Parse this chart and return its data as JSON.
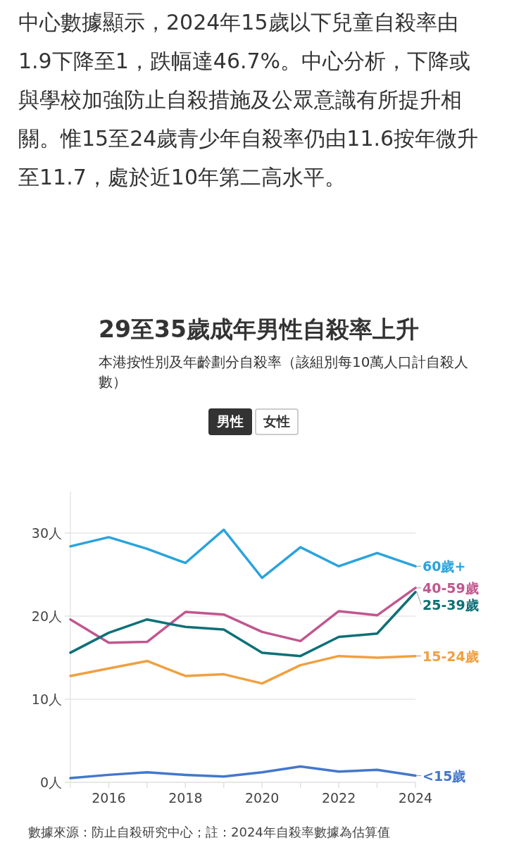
{
  "chart_data": {
    "type": "line",
    "title": "29至35歲成年男性自殺率上升",
    "subtitle": "本港按性別及年齡劃分自殺率（該組別每10萬人口計自殺人數）",
    "annotations": [
      "中心數據顯示，2024年15歲以下兒童自殺率由1.9下降至1，跌幅達46.7%。中心分析，下降或與學校加強防止自殺措施及公眾意識有所提升相關。惟15至24歲青少年自殺率仍由11.6按年微升至11.7，處於近10年第二高水平。",
      "男性",
      "女性",
      "數據來源：防止自殺研究中心；註：2024年自殺率數據為估算值"
    ],
    "x": [
      2015,
      2016,
      2017,
      2018,
      2019,
      2020,
      2021,
      2022,
      2023,
      2024
    ],
    "xlim": [
      2015,
      2024
    ],
    "xticks": [
      2016,
      {
        "value": 2017,
        "label": null
      },
      2018,
      {
        "value": 2019,
        "label": null
      },
      2020,
      {
        "value": 2021,
        "label": null
      },
      2022,
      {
        "value": 2023,
        "label": null
      },
      2024
    ],
    "ylim": [
      0,
      35
    ],
    "yticks": [
      {
        "value": 0,
        "label": "0人"
      },
      {
        "value": 10,
        "label": "10人"
      },
      {
        "value": 20,
        "label": "20人"
      },
      {
        "value": 30,
        "label": "30人"
      }
    ],
    "grid": "y",
    "legend": false,
    "series": [
      {
        "name": "60歲+",
        "color": "#29a3dc",
        "values": [
          28.4,
          29.5,
          28.1,
          26.4,
          30.4,
          24.6,
          28.3,
          26.0,
          27.6,
          26.0
        ]
      },
      {
        "name": "40-59歲",
        "color": "#c0578f",
        "values": [
          19.6,
          16.8,
          16.9,
          20.5,
          20.2,
          18.1,
          17.0,
          20.6,
          20.1,
          23.4
        ]
      },
      {
        "name": "25-39歲",
        "color": "#0e7077",
        "values": [
          15.6,
          18.0,
          19.6,
          18.7,
          18.4,
          15.6,
          15.2,
          17.5,
          17.9,
          22.9
        ]
      },
      {
        "name": "15-24歲",
        "color": "#f0a040",
        "values": [
          12.8,
          13.7,
          14.6,
          12.8,
          13.0,
          11.9,
          14.1,
          15.2,
          15.0,
          15.2
        ]
      },
      {
        "name": "<15歲",
        "color": "#4477cc",
        "values": [
          0.5,
          0.9,
          1.2,
          0.9,
          0.7,
          1.2,
          1.9,
          1.3,
          1.5,
          0.8
        ]
      }
    ]
  }
}
